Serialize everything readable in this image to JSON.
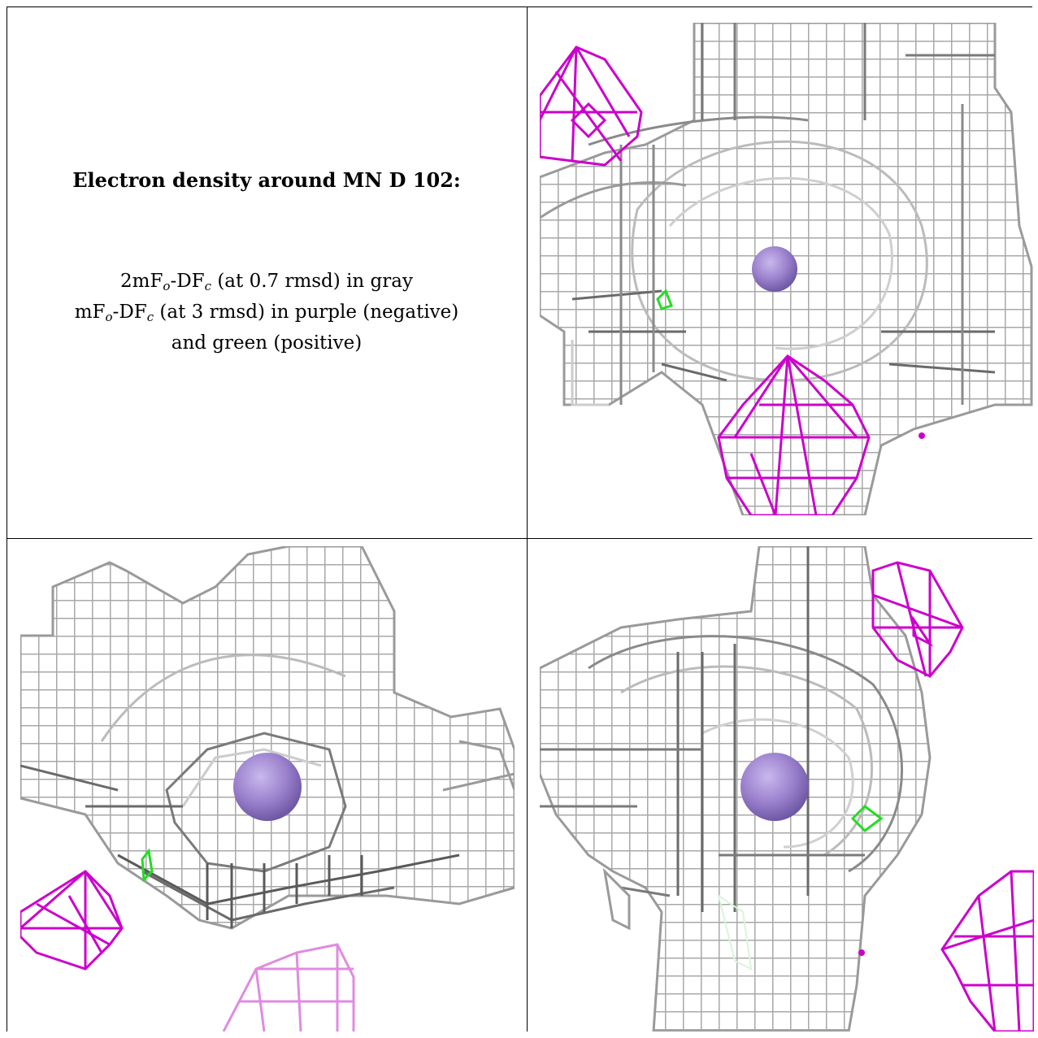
{
  "legend": {
    "title": "Electron density around MN D 102:",
    "line1": {
      "prefix": "2mF",
      "sub1": "o",
      "mid": "-DF",
      "sub2": "c",
      "suffix": " (at 0.7 rmsd) in gray"
    },
    "line2": {
      "prefix": "mF",
      "sub1": "o",
      "mid": "-DF",
      "sub2": "c",
      "suffix": " (at 3 rmsd) in purple (negative)"
    },
    "line3": "and green (positive)"
  },
  "colors": {
    "density_gray": "#a9a9a9",
    "density_dark": "#5a5a5a",
    "negative_magenta": "#cc00cc",
    "positive_green": "#22dd22",
    "atom_purple": "#9a80cc"
  },
  "panels": [
    {
      "name": "view-1",
      "atom": "MN"
    },
    {
      "name": "view-2",
      "atom": "MN"
    },
    {
      "name": "view-3",
      "atom": "MN"
    }
  ]
}
